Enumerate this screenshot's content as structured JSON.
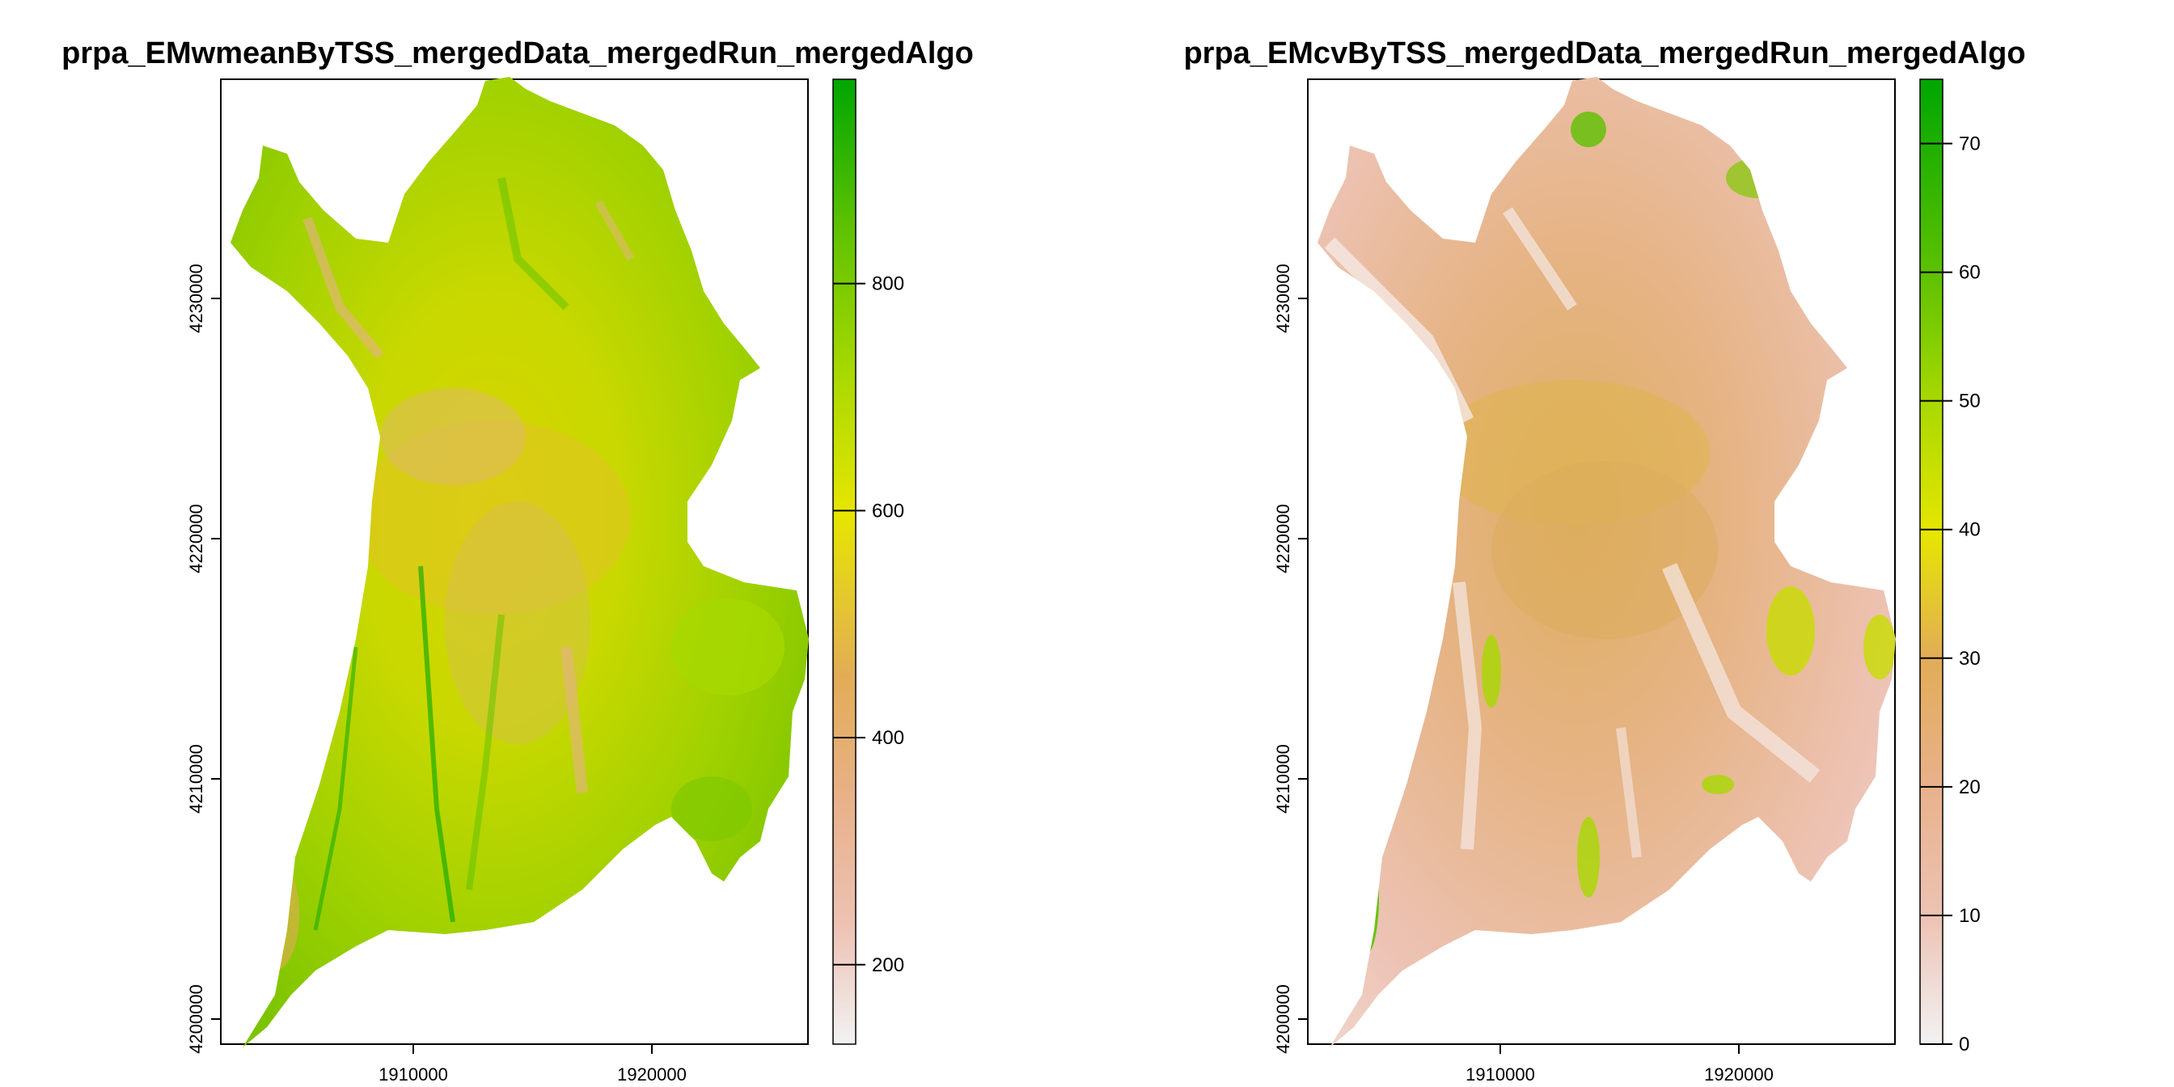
{
  "panels": [
    {
      "title": "prpa_EMwmeanByTSS_mergedData_mergedRun_mergedAlgo",
      "x_ticks": [
        "1910000",
        "1920000"
      ],
      "y_ticks": [
        "4200000",
        "4210000",
        "4220000",
        "4230000"
      ],
      "colorbar_ticks": [
        "200",
        "400",
        "600",
        "800"
      ],
      "colorbar_range": [
        130,
        980
      ],
      "colorbar_tick_values": [
        200,
        400,
        600,
        800
      ]
    },
    {
      "title": "prpa_EMcvByTSS_mergedData_mergedRun_mergedAlgo",
      "x_ticks": [
        "1910000",
        "1920000"
      ],
      "y_ticks": [
        "4200000",
        "4210000",
        "4220000",
        "4230000"
      ],
      "colorbar_ticks": [
        "0",
        "10",
        "20",
        "30",
        "40",
        "50",
        "60",
        "70"
      ],
      "colorbar_range": [
        0,
        75
      ],
      "colorbar_tick_values": [
        0,
        10,
        20,
        30,
        40,
        50,
        60,
        70
      ]
    }
  ],
  "colors": {
    "ramp": [
      "#F2F2F2",
      "#EDC3B5",
      "#E8B18A",
      "#E2AC57",
      "#E6E600",
      "#A6D800",
      "#5CC100",
      "#00A600"
    ]
  }
}
